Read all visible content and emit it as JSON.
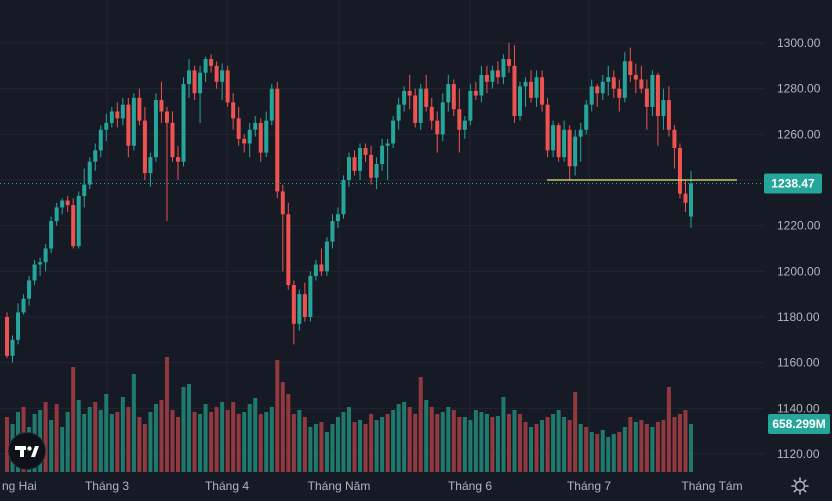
{
  "chart_data": {
    "type": "candlestick",
    "price_axis": {
      "ticks": [
        1300,
        1280,
        1260,
        1240,
        1220,
        1200,
        1180,
        1160,
        1140,
        1120
      ]
    },
    "time_axis": {
      "labels": [
        "ng Hai",
        "Tháng 3",
        "Tháng 4",
        "Tháng Năm",
        "Tháng 6",
        "Tháng 7",
        "Tháng Tám"
      ]
    },
    "last_price": {
      "value": 1238.47,
      "label": "1238.47"
    },
    "last_volume": {
      "label": "658.299M"
    },
    "horizontal_line": {
      "price": 1240,
      "color": "#e6e27a"
    },
    "colors": {
      "up": "#26a69a",
      "down": "#ef5350",
      "vol_up": "#1f7a6e",
      "vol_down": "#91393f",
      "background": "#161a25",
      "grid": "#232632"
    },
    "candles": [
      [
        1180,
        1182,
        1162,
        1163
      ],
      [
        1163,
        1172,
        1160,
        1170
      ],
      [
        1170,
        1186,
        1168,
        1182
      ],
      [
        1182,
        1190,
        1181,
        1188
      ],
      [
        1188,
        1198,
        1185,
        1196
      ],
      [
        1196,
        1205,
        1194,
        1203
      ],
      [
        1203,
        1206,
        1198,
        1204
      ],
      [
        1204,
        1212,
        1200,
        1210
      ],
      [
        1210,
        1224,
        1208,
        1222
      ],
      [
        1222,
        1230,
        1220,
        1228
      ],
      [
        1228,
        1232,
        1225,
        1231
      ],
      [
        1231,
        1233,
        1226,
        1229
      ],
      [
        1229,
        1232,
        1210,
        1211
      ],
      [
        1211,
        1235,
        1210,
        1233
      ],
      [
        1233,
        1245,
        1228,
        1238
      ],
      [
        1238,
        1250,
        1236,
        1248
      ],
      [
        1248,
        1256,
        1244,
        1253
      ],
      [
        1253,
        1264,
        1250,
        1262
      ],
      [
        1262,
        1269,
        1257,
        1265
      ],
      [
        1265,
        1272,
        1263,
        1270
      ],
      [
        1270,
        1274,
        1263,
        1267
      ],
      [
        1267,
        1276,
        1264,
        1273
      ],
      [
        1273,
        1276,
        1250,
        1255
      ],
      [
        1255,
        1278,
        1253,
        1276
      ],
      [
        1276,
        1280,
        1264,
        1266
      ],
      [
        1266,
        1272,
        1240,
        1243
      ],
      [
        1243,
        1252,
        1237,
        1250
      ],
      [
        1250,
        1278,
        1248,
        1275
      ],
      [
        1275,
        1283,
        1265,
        1270
      ],
      [
        1270,
        1272,
        1222,
        1265
      ],
      [
        1265,
        1270,
        1248,
        1250
      ],
      [
        1250,
        1255,
        1240,
        1248
      ],
      [
        1248,
        1285,
        1246,
        1282
      ],
      [
        1282,
        1293,
        1276,
        1288
      ],
      [
        1288,
        1290,
        1275,
        1278
      ],
      [
        1278,
        1290,
        1265,
        1287
      ],
      [
        1287,
        1294,
        1283,
        1293
      ],
      [
        1293,
        1295,
        1287,
        1290
      ],
      [
        1290,
        1292,
        1280,
        1283
      ],
      [
        1283,
        1291,
        1275,
        1288
      ],
      [
        1288,
        1290,
        1272,
        1274
      ],
      [
        1274,
        1278,
        1262,
        1267
      ],
      [
        1267,
        1272,
        1255,
        1258
      ],
      [
        1258,
        1260,
        1252,
        1256
      ],
      [
        1256,
        1265,
        1250,
        1262
      ],
      [
        1262,
        1268,
        1259,
        1265
      ],
      [
        1265,
        1267,
        1248,
        1252
      ],
      [
        1252,
        1270,
        1250,
        1266
      ],
      [
        1266,
        1282,
        1264,
        1280
      ],
      [
        1280,
        1283,
        1232,
        1235
      ],
      [
        1235,
        1238,
        1200,
        1225
      ],
      [
        1225,
        1230,
        1192,
        1194
      ],
      [
        1194,
        1196,
        1168,
        1177
      ],
      [
        1177,
        1192,
        1174,
        1190
      ],
      [
        1190,
        1195,
        1178,
        1180
      ],
      [
        1180,
        1200,
        1178,
        1198
      ],
      [
        1198,
        1205,
        1196,
        1203
      ],
      [
        1203,
        1210,
        1198,
        1200
      ],
      [
        1200,
        1215,
        1198,
        1213
      ],
      [
        1213,
        1225,
        1210,
        1222
      ],
      [
        1222,
        1228,
        1219,
        1225
      ],
      [
        1225,
        1242,
        1223,
        1240
      ],
      [
        1240,
        1252,
        1237,
        1250
      ],
      [
        1250,
        1253,
        1242,
        1244
      ],
      [
        1244,
        1256,
        1240,
        1254
      ],
      [
        1254,
        1256,
        1248,
        1251
      ],
      [
        1251,
        1255,
        1238,
        1241
      ],
      [
        1241,
        1250,
        1236,
        1247
      ],
      [
        1247,
        1258,
        1244,
        1255
      ],
      [
        1255,
        1258,
        1240,
        1256
      ],
      [
        1256,
        1268,
        1254,
        1266
      ],
      [
        1266,
        1276,
        1262,
        1273
      ],
      [
        1273,
        1281,
        1270,
        1279
      ],
      [
        1279,
        1286,
        1271,
        1277
      ],
      [
        1277,
        1280,
        1263,
        1265
      ],
      [
        1265,
        1282,
        1262,
        1280
      ],
      [
        1280,
        1286,
        1270,
        1272
      ],
      [
        1272,
        1276,
        1262,
        1266
      ],
      [
        1266,
        1270,
        1252,
        1260
      ],
      [
        1260,
        1278,
        1257,
        1274
      ],
      [
        1274,
        1286,
        1270,
        1282
      ],
      [
        1282,
        1284,
        1268,
        1271
      ],
      [
        1271,
        1280,
        1252,
        1262
      ],
      [
        1262,
        1268,
        1258,
        1266
      ],
      [
        1266,
        1282,
        1264,
        1279
      ],
      [
        1279,
        1283,
        1275,
        1277
      ],
      [
        1277,
        1290,
        1274,
        1286
      ],
      [
        1286,
        1290,
        1278,
        1283
      ],
      [
        1283,
        1290,
        1280,
        1288
      ],
      [
        1288,
        1292,
        1282,
        1285
      ],
      [
        1285,
        1295,
        1282,
        1293
      ],
      [
        1293,
        1300,
        1287,
        1290
      ],
      [
        1290,
        1299,
        1265,
        1268
      ],
      [
        1268,
        1283,
        1266,
        1281
      ],
      [
        1281,
        1285,
        1272,
        1283
      ],
      [
        1283,
        1288,
        1274,
        1276
      ],
      [
        1276,
        1288,
        1272,
        1285
      ],
      [
        1285,
        1288,
        1270,
        1273
      ],
      [
        1273,
        1276,
        1250,
        1253
      ],
      [
        1253,
        1266,
        1250,
        1264
      ],
      [
        1264,
        1265,
        1248,
        1250
      ],
      [
        1250,
        1266,
        1248,
        1262
      ],
      [
        1262,
        1264,
        1240,
        1246
      ],
      [
        1246,
        1262,
        1242,
        1259
      ],
      [
        1259,
        1265,
        1248,
        1262
      ],
      [
        1262,
        1275,
        1260,
        1273
      ],
      [
        1273,
        1284,
        1270,
        1281
      ],
      [
        1281,
        1282,
        1272,
        1278
      ],
      [
        1278,
        1286,
        1275,
        1283
      ],
      [
        1283,
        1290,
        1277,
        1285
      ],
      [
        1285,
        1288,
        1276,
        1280
      ],
      [
        1280,
        1284,
        1270,
        1276
      ],
      [
        1276,
        1296,
        1274,
        1292
      ],
      [
        1292,
        1298,
        1283,
        1286
      ],
      [
        1286,
        1291,
        1278,
        1284
      ],
      [
        1284,
        1290,
        1278,
        1280
      ],
      [
        1280,
        1284,
        1262,
        1272
      ],
      [
        1272,
        1288,
        1268,
        1286
      ],
      [
        1286,
        1287,
        1255,
        1268
      ],
      [
        1268,
        1280,
        1262,
        1275
      ],
      [
        1275,
        1281,
        1259,
        1262
      ],
      [
        1262,
        1264,
        1245,
        1254
      ],
      [
        1254,
        1256,
        1232,
        1234
      ],
      [
        1234,
        1240,
        1226,
        1230
      ],
      [
        1224,
        1244,
        1219,
        1238.47
      ]
    ],
    "volumes": [
      [
        55,
        0
      ],
      [
        48,
        1
      ],
      [
        60,
        1
      ],
      [
        65,
        0
      ],
      [
        45,
        1
      ],
      [
        58,
        1
      ],
      [
        62,
        1
      ],
      [
        70,
        0
      ],
      [
        52,
        1
      ],
      [
        68,
        0
      ],
      [
        45,
        1
      ],
      [
        60,
        1
      ],
      [
        105,
        0
      ],
      [
        72,
        1
      ],
      [
        58,
        1
      ],
      [
        65,
        1
      ],
      [
        70,
        0
      ],
      [
        62,
        1
      ],
      [
        78,
        1
      ],
      [
        58,
        1
      ],
      [
        60,
        0
      ],
      [
        75,
        1
      ],
      [
        65,
        0
      ],
      [
        98,
        1
      ],
      [
        55,
        0
      ],
      [
        48,
        0
      ],
      [
        60,
        1
      ],
      [
        68,
        1
      ],
      [
        72,
        0
      ],
      [
        115,
        0
      ],
      [
        62,
        0
      ],
      [
        55,
        0
      ],
      [
        85,
        1
      ],
      [
        88,
        1
      ],
      [
        60,
        0
      ],
      [
        58,
        1
      ],
      [
        68,
        1
      ],
      [
        60,
        0
      ],
      [
        65,
        0
      ],
      [
        70,
        1
      ],
      [
        62,
        0
      ],
      [
        70,
        0
      ],
      [
        58,
        0
      ],
      [
        60,
        1
      ],
      [
        68,
        1
      ],
      [
        74,
        1
      ],
      [
        58,
        0
      ],
      [
        60,
        1
      ],
      [
        65,
        1
      ],
      [
        112,
        0
      ],
      [
        90,
        0
      ],
      [
        78,
        0
      ],
      [
        58,
        0
      ],
      [
        62,
        1
      ],
      [
        55,
        0
      ],
      [
        45,
        1
      ],
      [
        48,
        1
      ],
      [
        50,
        0
      ],
      [
        40,
        1
      ],
      [
        48,
        1
      ],
      [
        55,
        1
      ],
      [
        60,
        1
      ],
      [
        65,
        1
      ],
      [
        50,
        0
      ],
      [
        52,
        1
      ],
      [
        48,
        0
      ],
      [
        58,
        0
      ],
      [
        52,
        1
      ],
      [
        55,
        1
      ],
      [
        58,
        0
      ],
      [
        62,
        1
      ],
      [
        68,
        1
      ],
      [
        70,
        1
      ],
      [
        65,
        0
      ],
      [
        58,
        0
      ],
      [
        95,
        0
      ],
      [
        72,
        1
      ],
      [
        65,
        0
      ],
      [
        58,
        0
      ],
      [
        60,
        1
      ],
      [
        65,
        1
      ],
      [
        62,
        0
      ],
      [
        55,
        0
      ],
      [
        55,
        1
      ],
      [
        52,
        1
      ],
      [
        62,
        1
      ],
      [
        60,
        1
      ],
      [
        58,
        1
      ],
      [
        55,
        0
      ],
      [
        56,
        1
      ],
      [
        75,
        1
      ],
      [
        58,
        0
      ],
      [
        62,
        1
      ],
      [
        58,
        0
      ],
      [
        50,
        0
      ],
      [
        45,
        1
      ],
      [
        48,
        0
      ],
      [
        52,
        1
      ],
      [
        55,
        0
      ],
      [
        58,
        1
      ],
      [
        62,
        1
      ],
      [
        55,
        1
      ],
      [
        52,
        0
      ],
      [
        80,
        0
      ],
      [
        48,
        1
      ],
      [
        45,
        0
      ],
      [
        40,
        1
      ],
      [
        38,
        0
      ],
      [
        42,
        1
      ],
      [
        35,
        1
      ],
      [
        38,
        1
      ],
      [
        40,
        0
      ],
      [
        45,
        1
      ],
      [
        55,
        0
      ],
      [
        50,
        1
      ],
      [
        52,
        0
      ],
      [
        48,
        0
      ],
      [
        45,
        1
      ],
      [
        50,
        0
      ],
      [
        52,
        0
      ],
      [
        85,
        0
      ],
      [
        55,
        0
      ],
      [
        58,
        0
      ],
      [
        62,
        0
      ],
      [
        48,
        1
      ]
    ]
  },
  "icons": {
    "logo": "tradingview-logo",
    "settings": "gear-icon"
  }
}
